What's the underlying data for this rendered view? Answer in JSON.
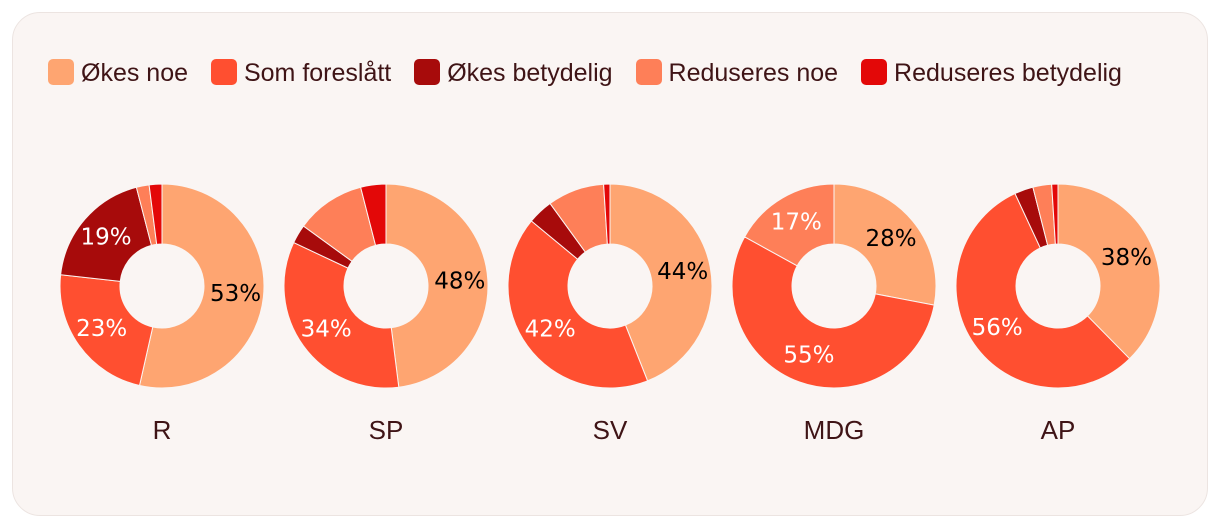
{
  "chart_data": {
    "type": "pie",
    "variant": "donut",
    "title": "",
    "legend": [
      {
        "name": "Økes noe",
        "color": "#fea571"
      },
      {
        "name": "Som foreslått",
        "color": "#ff4f30"
      },
      {
        "name": "Økes betydelig",
        "color": "#a70b0b"
      },
      {
        "name": "Reduseres noe",
        "color": "#fe7f58"
      },
      {
        "name": "Reduseres betydelig",
        "color": "#e30808"
      }
    ],
    "charts": [
      {
        "party": "R",
        "values": [
          53,
          23,
          19,
          2,
          2
        ],
        "labels": [
          "53%",
          "23%",
          "19%",
          "",
          ""
        ]
      },
      {
        "party": "SP",
        "values": [
          48,
          34,
          3,
          11,
          4
        ],
        "labels": [
          "48%",
          "34%",
          "",
          "",
          ""
        ]
      },
      {
        "party": "SV",
        "values": [
          44,
          42,
          4,
          9,
          1
        ],
        "labels": [
          "44%",
          "42%",
          "",
          "",
          ""
        ]
      },
      {
        "party": "MDG",
        "values": [
          28,
          55,
          0,
          17,
          0
        ],
        "labels": [
          "28%",
          "55%",
          "",
          "17%",
          ""
        ]
      },
      {
        "party": "AP",
        "values": [
          38,
          56,
          3,
          3,
          1
        ],
        "labels": [
          "38%",
          "56%",
          "",
          "",
          ""
        ]
      }
    ]
  }
}
